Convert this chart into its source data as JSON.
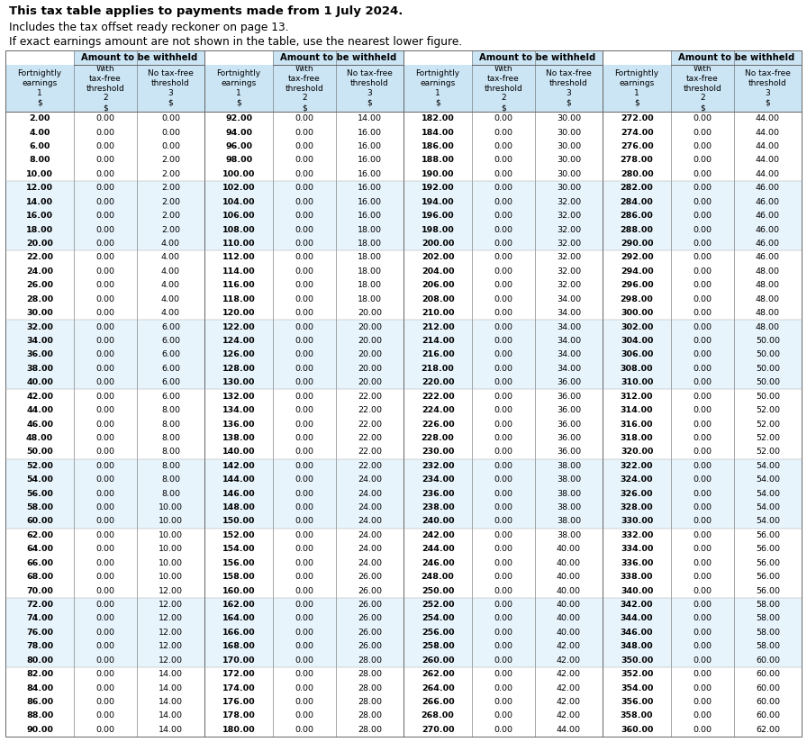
{
  "title_bold": "This tax table applies to payments made from 1 July 2024.",
  "subtitle1": "Includes the tax offset ready reckoner on page 13.",
  "subtitle2": "If exact earnings amount are not shown in the table, use the nearest lower figure.",
  "header_bg": "#cce5f5",
  "alt_bg": "#e8f4fc",
  "white": "#ffffff",
  "table_data": [
    [
      2.0,
      0.0,
      0.0,
      92.0,
      0.0,
      14.0,
      182.0,
      0.0,
      30.0,
      272.0,
      0.0,
      44.0
    ],
    [
      4.0,
      0.0,
      0.0,
      94.0,
      0.0,
      16.0,
      184.0,
      0.0,
      30.0,
      274.0,
      0.0,
      44.0
    ],
    [
      6.0,
      0.0,
      0.0,
      96.0,
      0.0,
      16.0,
      186.0,
      0.0,
      30.0,
      276.0,
      0.0,
      44.0
    ],
    [
      8.0,
      0.0,
      2.0,
      98.0,
      0.0,
      16.0,
      188.0,
      0.0,
      30.0,
      278.0,
      0.0,
      44.0
    ],
    [
      10.0,
      0.0,
      2.0,
      100.0,
      0.0,
      16.0,
      190.0,
      0.0,
      30.0,
      280.0,
      0.0,
      44.0
    ],
    [
      12.0,
      0.0,
      2.0,
      102.0,
      0.0,
      16.0,
      192.0,
      0.0,
      30.0,
      282.0,
      0.0,
      46.0
    ],
    [
      14.0,
      0.0,
      2.0,
      104.0,
      0.0,
      16.0,
      194.0,
      0.0,
      32.0,
      284.0,
      0.0,
      46.0
    ],
    [
      16.0,
      0.0,
      2.0,
      106.0,
      0.0,
      16.0,
      196.0,
      0.0,
      32.0,
      286.0,
      0.0,
      46.0
    ],
    [
      18.0,
      0.0,
      2.0,
      108.0,
      0.0,
      18.0,
      198.0,
      0.0,
      32.0,
      288.0,
      0.0,
      46.0
    ],
    [
      20.0,
      0.0,
      4.0,
      110.0,
      0.0,
      18.0,
      200.0,
      0.0,
      32.0,
      290.0,
      0.0,
      46.0
    ],
    [
      22.0,
      0.0,
      4.0,
      112.0,
      0.0,
      18.0,
      202.0,
      0.0,
      32.0,
      292.0,
      0.0,
      46.0
    ],
    [
      24.0,
      0.0,
      4.0,
      114.0,
      0.0,
      18.0,
      204.0,
      0.0,
      32.0,
      294.0,
      0.0,
      48.0
    ],
    [
      26.0,
      0.0,
      4.0,
      116.0,
      0.0,
      18.0,
      206.0,
      0.0,
      32.0,
      296.0,
      0.0,
      48.0
    ],
    [
      28.0,
      0.0,
      4.0,
      118.0,
      0.0,
      18.0,
      208.0,
      0.0,
      34.0,
      298.0,
      0.0,
      48.0
    ],
    [
      30.0,
      0.0,
      4.0,
      120.0,
      0.0,
      20.0,
      210.0,
      0.0,
      34.0,
      300.0,
      0.0,
      48.0
    ],
    [
      32.0,
      0.0,
      6.0,
      122.0,
      0.0,
      20.0,
      212.0,
      0.0,
      34.0,
      302.0,
      0.0,
      48.0
    ],
    [
      34.0,
      0.0,
      6.0,
      124.0,
      0.0,
      20.0,
      214.0,
      0.0,
      34.0,
      304.0,
      0.0,
      50.0
    ],
    [
      36.0,
      0.0,
      6.0,
      126.0,
      0.0,
      20.0,
      216.0,
      0.0,
      34.0,
      306.0,
      0.0,
      50.0
    ],
    [
      38.0,
      0.0,
      6.0,
      128.0,
      0.0,
      20.0,
      218.0,
      0.0,
      34.0,
      308.0,
      0.0,
      50.0
    ],
    [
      40.0,
      0.0,
      6.0,
      130.0,
      0.0,
      20.0,
      220.0,
      0.0,
      36.0,
      310.0,
      0.0,
      50.0
    ],
    [
      42.0,
      0.0,
      6.0,
      132.0,
      0.0,
      22.0,
      222.0,
      0.0,
      36.0,
      312.0,
      0.0,
      50.0
    ],
    [
      44.0,
      0.0,
      8.0,
      134.0,
      0.0,
      22.0,
      224.0,
      0.0,
      36.0,
      314.0,
      0.0,
      52.0
    ],
    [
      46.0,
      0.0,
      8.0,
      136.0,
      0.0,
      22.0,
      226.0,
      0.0,
      36.0,
      316.0,
      0.0,
      52.0
    ],
    [
      48.0,
      0.0,
      8.0,
      138.0,
      0.0,
      22.0,
      228.0,
      0.0,
      36.0,
      318.0,
      0.0,
      52.0
    ],
    [
      50.0,
      0.0,
      8.0,
      140.0,
      0.0,
      22.0,
      230.0,
      0.0,
      36.0,
      320.0,
      0.0,
      52.0
    ],
    [
      52.0,
      0.0,
      8.0,
      142.0,
      0.0,
      22.0,
      232.0,
      0.0,
      38.0,
      322.0,
      0.0,
      54.0
    ],
    [
      54.0,
      0.0,
      8.0,
      144.0,
      0.0,
      24.0,
      234.0,
      0.0,
      38.0,
      324.0,
      0.0,
      54.0
    ],
    [
      56.0,
      0.0,
      8.0,
      146.0,
      0.0,
      24.0,
      236.0,
      0.0,
      38.0,
      326.0,
      0.0,
      54.0
    ],
    [
      58.0,
      0.0,
      10.0,
      148.0,
      0.0,
      24.0,
      238.0,
      0.0,
      38.0,
      328.0,
      0.0,
      54.0
    ],
    [
      60.0,
      0.0,
      10.0,
      150.0,
      0.0,
      24.0,
      240.0,
      0.0,
      38.0,
      330.0,
      0.0,
      54.0
    ],
    [
      62.0,
      0.0,
      10.0,
      152.0,
      0.0,
      24.0,
      242.0,
      0.0,
      38.0,
      332.0,
      0.0,
      56.0
    ],
    [
      64.0,
      0.0,
      10.0,
      154.0,
      0.0,
      24.0,
      244.0,
      0.0,
      40.0,
      334.0,
      0.0,
      56.0
    ],
    [
      66.0,
      0.0,
      10.0,
      156.0,
      0.0,
      24.0,
      246.0,
      0.0,
      40.0,
      336.0,
      0.0,
      56.0
    ],
    [
      68.0,
      0.0,
      10.0,
      158.0,
      0.0,
      26.0,
      248.0,
      0.0,
      40.0,
      338.0,
      0.0,
      56.0
    ],
    [
      70.0,
      0.0,
      12.0,
      160.0,
      0.0,
      26.0,
      250.0,
      0.0,
      40.0,
      340.0,
      0.0,
      56.0
    ],
    [
      72.0,
      0.0,
      12.0,
      162.0,
      0.0,
      26.0,
      252.0,
      0.0,
      40.0,
      342.0,
      0.0,
      58.0
    ],
    [
      74.0,
      0.0,
      12.0,
      164.0,
      0.0,
      26.0,
      254.0,
      0.0,
      40.0,
      344.0,
      0.0,
      58.0
    ],
    [
      76.0,
      0.0,
      12.0,
      166.0,
      0.0,
      26.0,
      256.0,
      0.0,
      40.0,
      346.0,
      0.0,
      58.0
    ],
    [
      78.0,
      0.0,
      12.0,
      168.0,
      0.0,
      26.0,
      258.0,
      0.0,
      42.0,
      348.0,
      0.0,
      58.0
    ],
    [
      80.0,
      0.0,
      12.0,
      170.0,
      0.0,
      28.0,
      260.0,
      0.0,
      42.0,
      350.0,
      0.0,
      60.0
    ],
    [
      82.0,
      0.0,
      14.0,
      172.0,
      0.0,
      28.0,
      262.0,
      0.0,
      42.0,
      352.0,
      0.0,
      60.0
    ],
    [
      84.0,
      0.0,
      14.0,
      174.0,
      0.0,
      28.0,
      264.0,
      0.0,
      42.0,
      354.0,
      0.0,
      60.0
    ],
    [
      86.0,
      0.0,
      14.0,
      176.0,
      0.0,
      28.0,
      266.0,
      0.0,
      42.0,
      356.0,
      0.0,
      60.0
    ],
    [
      88.0,
      0.0,
      14.0,
      178.0,
      0.0,
      28.0,
      268.0,
      0.0,
      42.0,
      358.0,
      0.0,
      60.0
    ],
    [
      90.0,
      0.0,
      14.0,
      180.0,
      0.0,
      28.0,
      270.0,
      0.0,
      44.0,
      360.0,
      0.0,
      62.0
    ]
  ]
}
